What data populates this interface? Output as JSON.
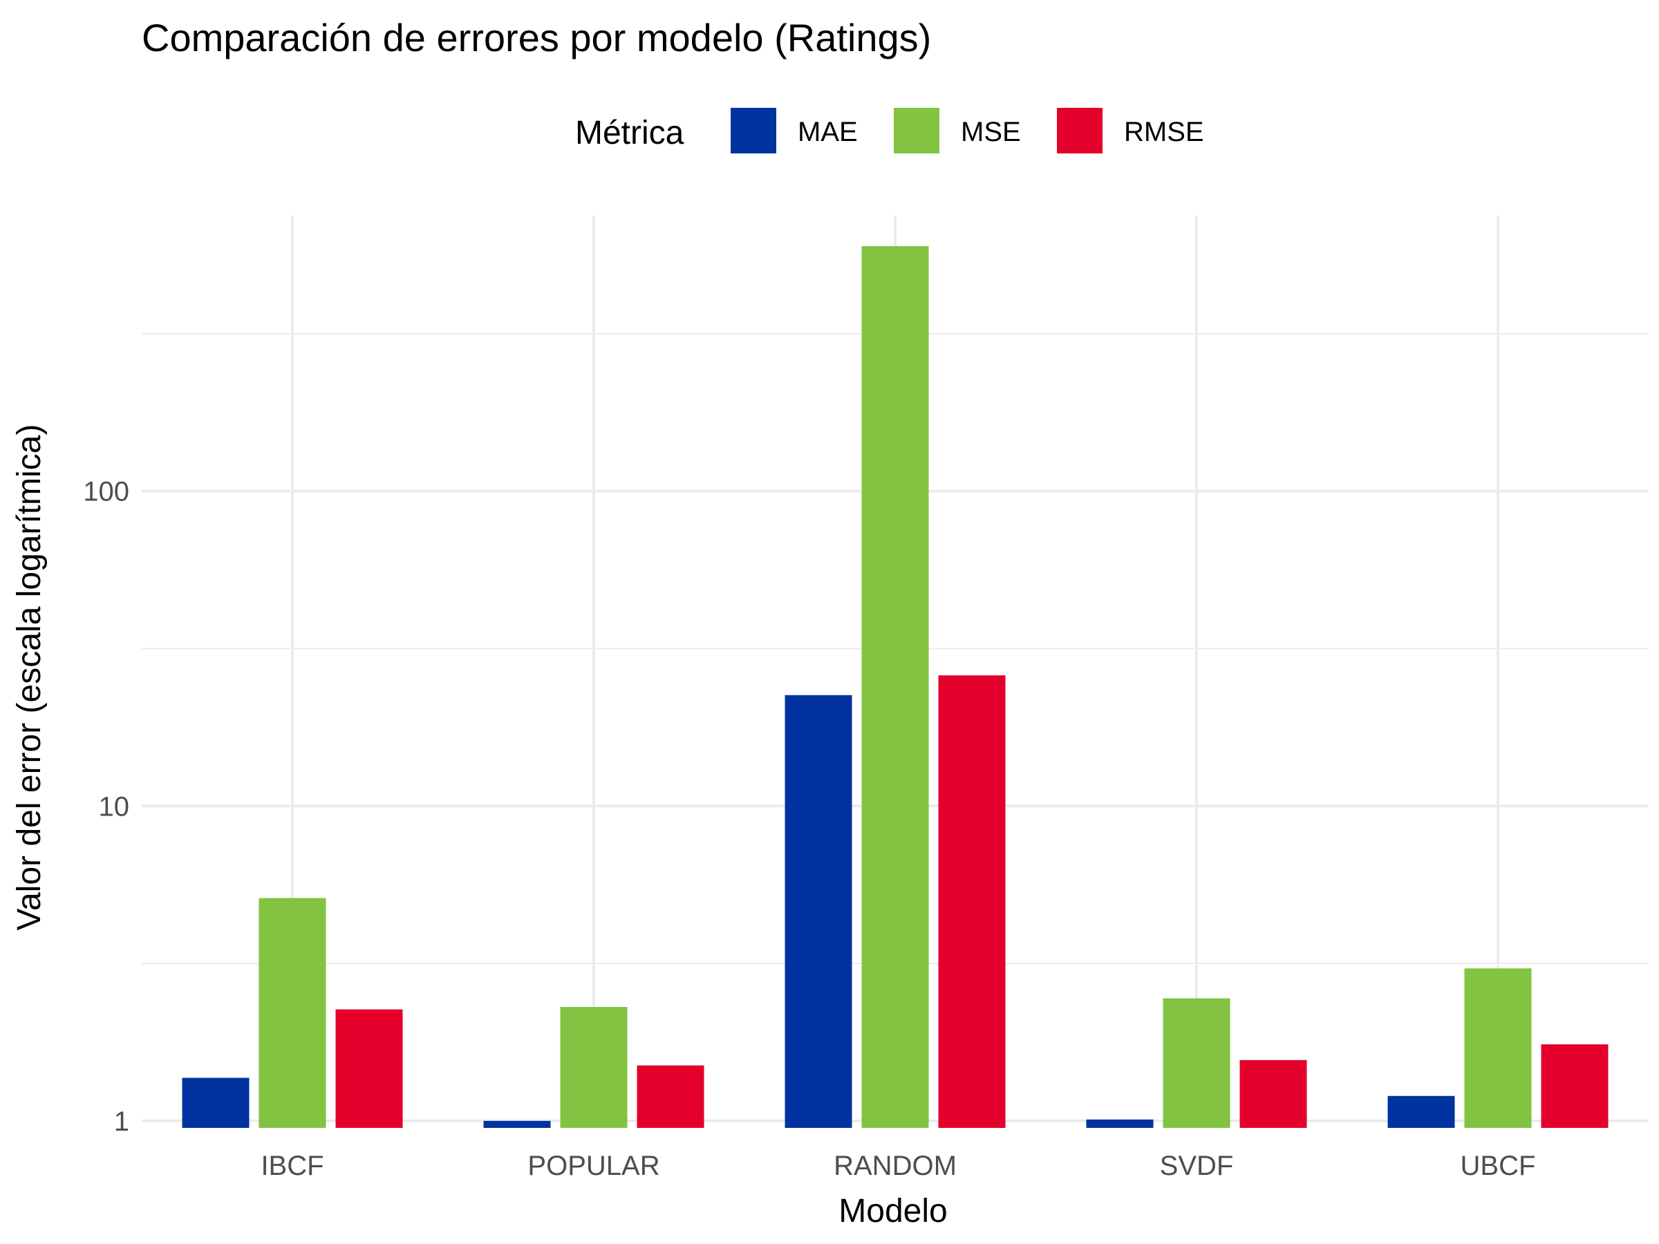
{
  "chart_data": {
    "type": "bar",
    "title": "Comparación de errores por modelo (Ratings)",
    "xlabel": "Modelo",
    "ylabel": "Valor del error (escala logarítmica)",
    "y_scale": "log10",
    "ylim": [
      0.95,
      750
    ],
    "y_ticks": [
      1,
      10,
      100
    ],
    "y_tick_labels": [
      "1",
      "10",
      "100"
    ],
    "legend_title": "Métrica",
    "legend_position": "top",
    "grid": true,
    "categories": [
      "IBCF",
      "POPULAR",
      "RANDOM",
      "SVDF",
      "UBCF"
    ],
    "series": [
      {
        "name": "MAE",
        "color": "#0033A0",
        "values": [
          1.37,
          1.0,
          22.5,
          1.01,
          1.2
        ]
      },
      {
        "name": "MSE",
        "color": "#82C341",
        "values": [
          5.1,
          2.3,
          600,
          2.45,
          3.05
        ]
      },
      {
        "name": "RMSE",
        "color": "#E4002B",
        "values": [
          2.26,
          1.5,
          26.0,
          1.56,
          1.75
        ]
      }
    ]
  }
}
